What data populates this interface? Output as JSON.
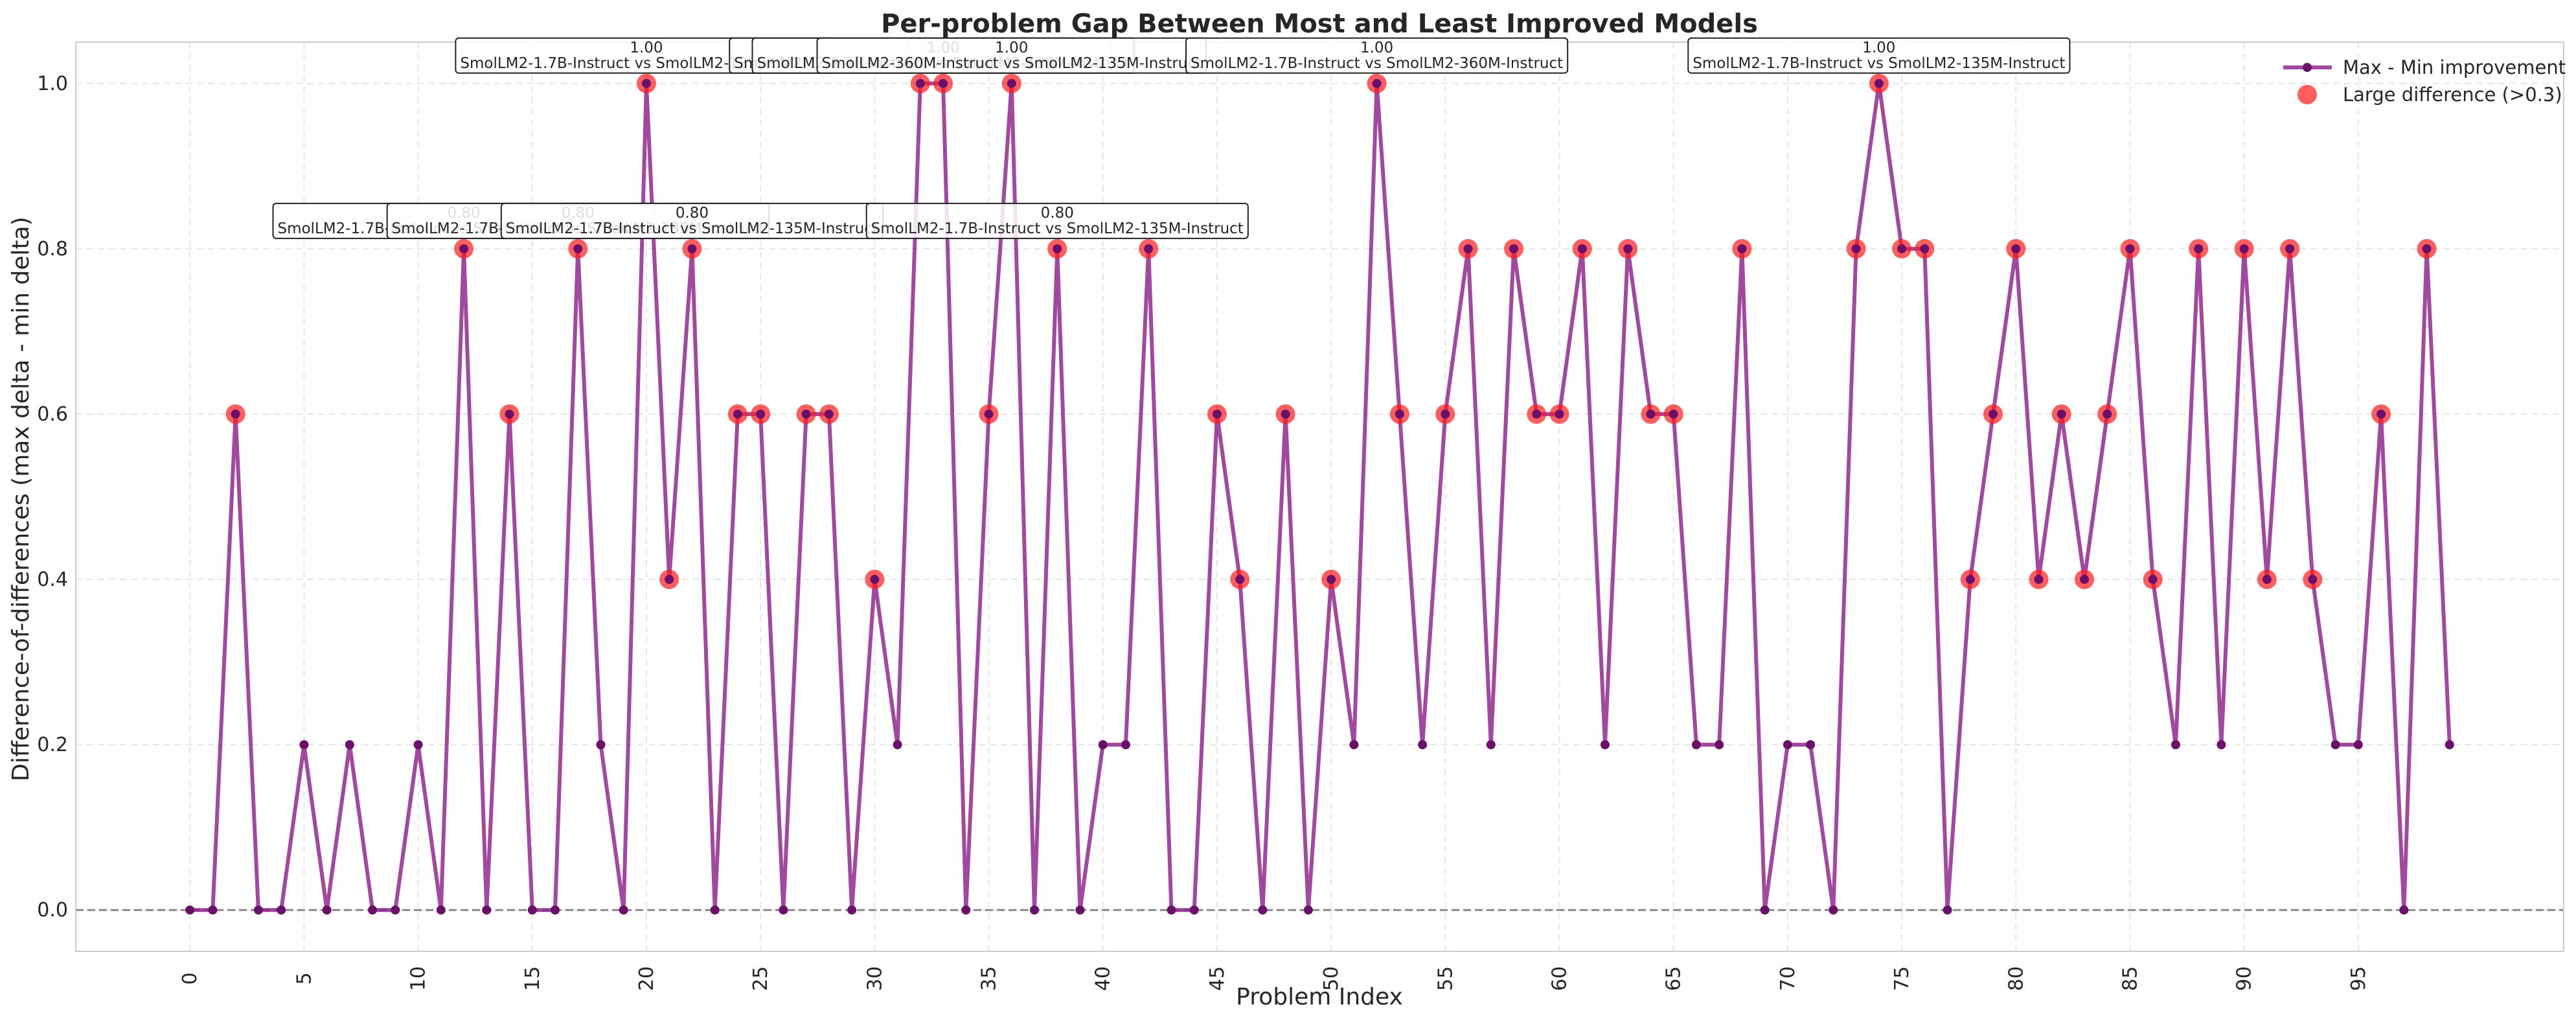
{
  "chart_data": {
    "type": "line",
    "title": "Per-problem Gap Between Most and Least Improved Models",
    "xlabel": "Problem Index",
    "ylabel": "Difference-of-differences (max delta - min delta)",
    "xlim": [
      -5,
      104
    ],
    "ylim": [
      -0.05,
      1.05
    ],
    "xticks": [
      0,
      5,
      10,
      15,
      20,
      25,
      30,
      35,
      40,
      45,
      50,
      55,
      60,
      65,
      70,
      75,
      80,
      85,
      90,
      95
    ],
    "yticks": [
      "0.0",
      "0.2",
      "0.4",
      "0.6",
      "0.8",
      "1.0"
    ],
    "grid": true,
    "legend_position": "top-right",
    "threshold": 0.3,
    "reference_line_y": 0.0,
    "colors": {
      "line": "#8b1a89",
      "marker": "#6a0f6a",
      "highlight": "#ff1a1a",
      "ref_line": "#888888"
    },
    "series": [
      {
        "name": "Max - Min improvement",
        "x": [
          0,
          1,
          2,
          3,
          4,
          5,
          6,
          7,
          8,
          9,
          10,
          11,
          12,
          13,
          14,
          15,
          16,
          17,
          18,
          19,
          20,
          21,
          22,
          23,
          24,
          25,
          26,
          27,
          28,
          29,
          30,
          31,
          32,
          33,
          34,
          35,
          36,
          37,
          38,
          39,
          40,
          41,
          42,
          43,
          44,
          45,
          46,
          47,
          48,
          49,
          50,
          51,
          52,
          53,
          54,
          55,
          56,
          57,
          58,
          59,
          60,
          61,
          62,
          63,
          64,
          65,
          66,
          67,
          68,
          69,
          70,
          71,
          72,
          73,
          74,
          75,
          76,
          77,
          78,
          79,
          80,
          81,
          82,
          83,
          84,
          85,
          86,
          87,
          88,
          89,
          90,
          91,
          92,
          93,
          94,
          95,
          96,
          97,
          98,
          99
        ],
        "values": [
          0,
          0,
          0.6,
          0,
          0,
          0.2,
          0,
          0.2,
          0,
          0,
          0.2,
          0,
          0.8,
          0,
          0.6,
          0,
          0,
          0.8,
          0.2,
          0,
          1.0,
          0.4,
          0.8,
          0,
          0.6,
          0.6,
          0,
          0.6,
          0.6,
          0,
          0.4,
          0.2,
          1.0,
          1.0,
          0,
          0.6,
          1.0,
          0,
          0.8,
          0,
          0.2,
          0.2,
          0.8,
          0,
          0,
          0.6,
          0.4,
          0,
          0.6,
          0,
          0.4,
          0.2,
          1.0,
          0.6,
          0.2,
          0.6,
          0.8,
          0.2,
          0.8,
          0.6,
          0.6,
          0.8,
          0.2,
          0.8,
          0.6,
          0.6,
          0.2,
          0.2,
          0.8,
          0,
          0.2,
          0.2,
          0,
          0.8,
          1.0,
          0.8,
          0.8,
          0,
          0.4,
          0.6,
          0.8,
          0.4,
          0.6,
          0.4,
          0.6,
          0.8,
          0.4,
          0.2,
          0.8,
          0.2,
          0.8,
          0.4,
          0.8,
          0.4,
          0.2,
          0.2,
          0.6,
          0,
          0.8,
          0.2
        ]
      },
      {
        "name": "Large difference (>0.3)"
      }
    ],
    "annotations": [
      {
        "x": 12,
        "y": 0.8,
        "value": "0.80",
        "pair": "SmolLM2-1.7B-Instruct vs SmolLM2-135M-Instruct"
      },
      {
        "x": 17,
        "y": 0.8,
        "value": "0.80",
        "pair": "SmolLM2-1.7B-Instruct vs SmolLM2-135M-Instruct"
      },
      {
        "x": 20,
        "y": 1.0,
        "value": "1.00",
        "pair": "SmolLM2-1.7B-Instruct vs SmolLM2-135M-Instruct"
      },
      {
        "x": 22,
        "y": 0.8,
        "value": "0.80",
        "pair": "SmolLM2-1.7B-Instruct vs SmolLM2-135M-Instruct"
      },
      {
        "x": 32,
        "y": 1.0,
        "value": "1.00",
        "pair": "SmolLM2-1.7B-Instruct vs SmolLM2-135M-Instruct"
      },
      {
        "x": 33,
        "y": 1.0,
        "value": "1.00",
        "pair": "SmolLM2-1.7B-Instruct vs SmolLM2-135M-Instruct"
      },
      {
        "x": 36,
        "y": 1.0,
        "value": "1.00",
        "pair": "SmolLM2-360M-Instruct vs SmolLM2-135M-Instruct"
      },
      {
        "x": 38,
        "y": 0.8,
        "value": "0.80",
        "pair": "SmolLM2-1.7B-Instruct vs SmolLM2-135M-Instruct"
      },
      {
        "x": 52,
        "y": 1.0,
        "value": "1.00",
        "pair": "SmolLM2-1.7B-Instruct vs SmolLM2-360M-Instruct"
      },
      {
        "x": 74,
        "y": 1.0,
        "value": "1.00",
        "pair": "SmolLM2-1.7B-Instruct vs SmolLM2-135M-Instruct"
      }
    ]
  }
}
